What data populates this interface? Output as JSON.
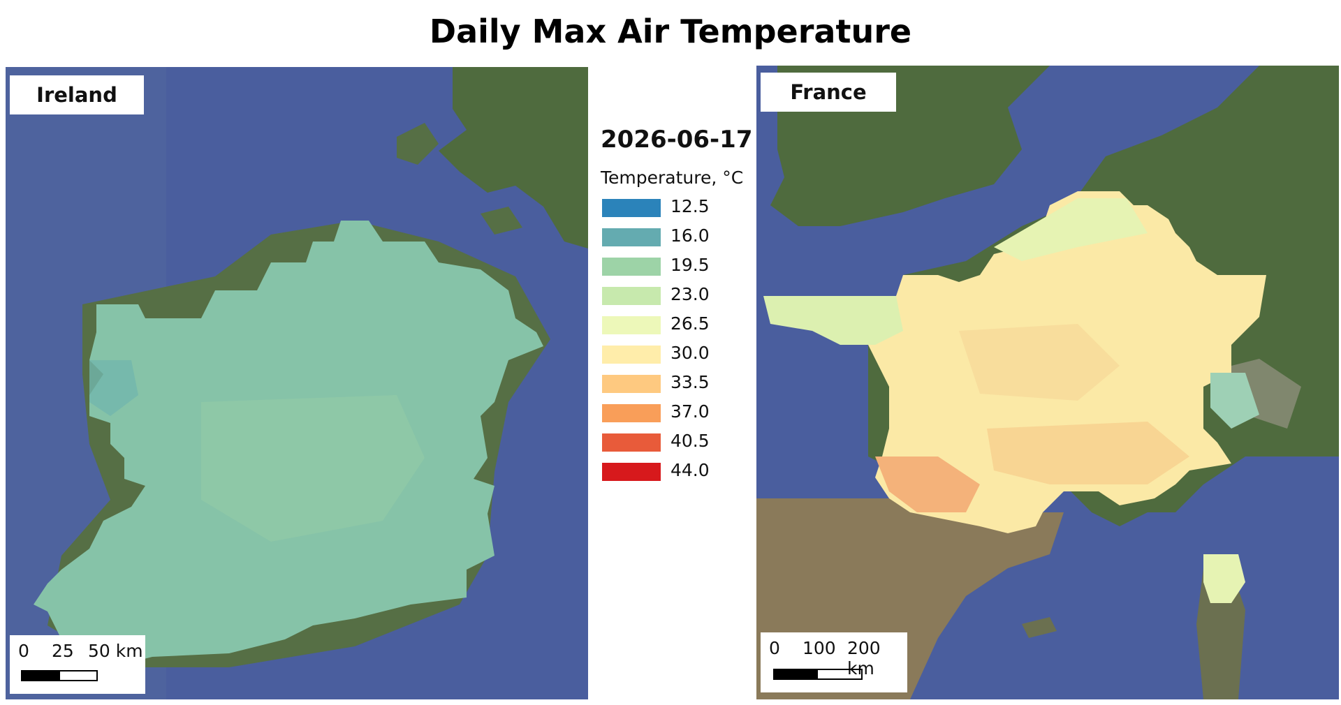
{
  "title": "Daily Max Air Temperature",
  "date": "2026-06-17",
  "legend": {
    "title": "Temperature, °C",
    "items": [
      {
        "value": "12.5",
        "color": "#2b83ba"
      },
      {
        "value": "16.0",
        "color": "#64abb0"
      },
      {
        "value": "19.5",
        "color": "#9dd3a7"
      },
      {
        "value": "23.0",
        "color": "#c7e9ad"
      },
      {
        "value": "26.5",
        "color": "#edf8b9"
      },
      {
        "value": "30.0",
        "color": "#ffedaa"
      },
      {
        "value": "33.5",
        "color": "#fec980"
      },
      {
        "value": "37.0",
        "color": "#f99e59"
      },
      {
        "value": "40.5",
        "color": "#e85b3a"
      },
      {
        "value": "44.0",
        "color": "#d7191c"
      }
    ]
  },
  "panels": {
    "ireland": {
      "label": "Ireland",
      "scale": {
        "ticks": [
          "0",
          "25",
          "50 km"
        ]
      }
    },
    "france": {
      "label": "France",
      "scale": {
        "ticks": [
          "0",
          "100",
          "200 km"
        ]
      }
    }
  },
  "colors": {
    "sea": "#4a5e9e",
    "land": "#4f6b3e",
    "land_dry": "#8a7a5a",
    "ireland_temp": "#86c3a8",
    "france_temp": "#fbe9a6",
    "france_hot": "#f4b27a",
    "france_cool": "#cfe9b3"
  }
}
